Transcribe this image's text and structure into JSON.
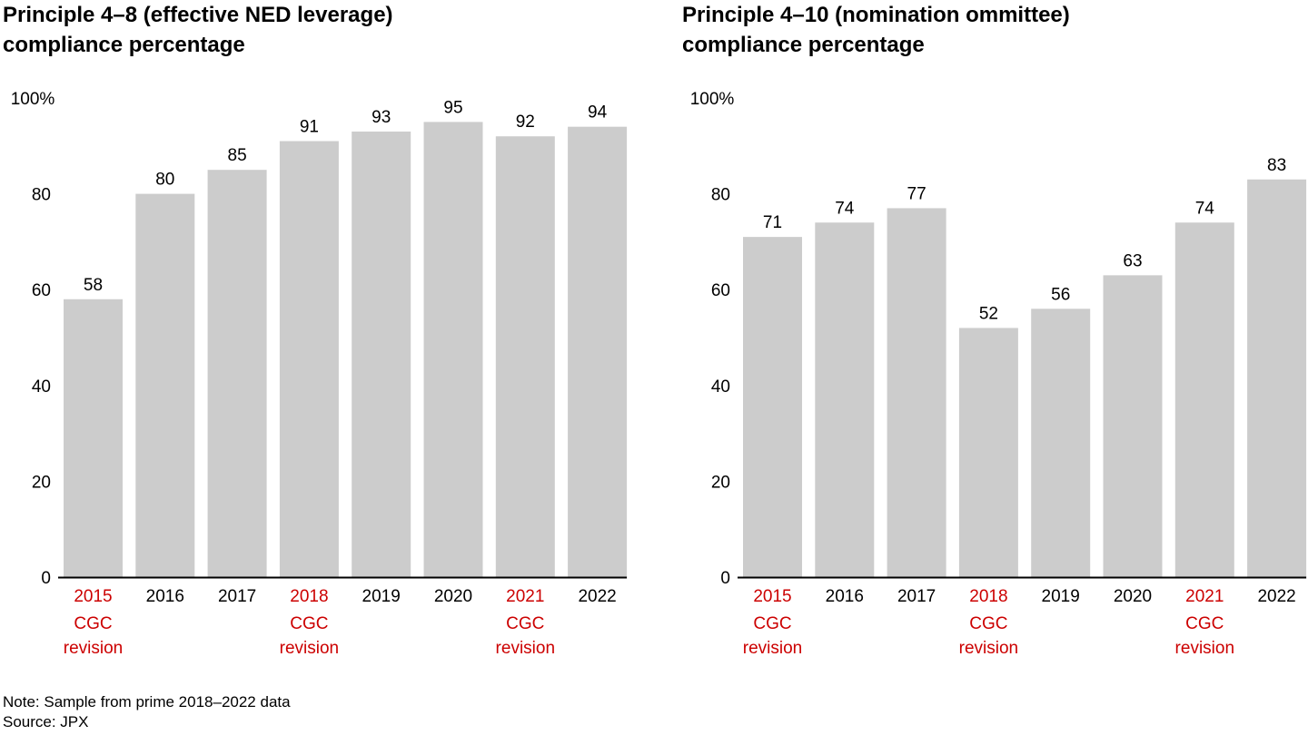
{
  "colors": {
    "bar": "#cccccc",
    "axis": "#000000",
    "highlight": "#cc0000",
    "text": "#000000"
  },
  "chart_data": [
    {
      "type": "bar",
      "title_line1": "Principle 4–8 (effective NED leverage)",
      "title_line2": "compliance percentage",
      "categories": [
        "2015",
        "2016",
        "2017",
        "2018",
        "2019",
        "2020",
        "2021",
        "2022"
      ],
      "values": [
        58,
        80,
        85,
        91,
        93,
        95,
        92,
        94
      ],
      "highlighted": [
        "2015",
        "2018",
        "2021"
      ],
      "highlight_label_line1": "CGC",
      "highlight_label_line2": "revision",
      "yticks": [
        "0",
        "20",
        "40",
        "60",
        "80",
        "100%"
      ],
      "ylim": [
        0,
        100
      ],
      "xlabel": "",
      "ylabel": "",
      "grid": false,
      "legend": "none"
    },
    {
      "type": "bar",
      "title_line1": "Principle 4–10 (nomination ommittee)",
      "title_line2": "compliance percentage",
      "categories": [
        "2015",
        "2016",
        "2017",
        "2018",
        "2019",
        "2020",
        "2021",
        "2022"
      ],
      "values": [
        71,
        74,
        77,
        52,
        56,
        63,
        74,
        83
      ],
      "highlighted": [
        "2015",
        "2018",
        "2021"
      ],
      "highlight_label_line1": "CGC",
      "highlight_label_line2": "revision",
      "yticks": [
        "0",
        "20",
        "40",
        "60",
        "80",
        "100%"
      ],
      "ylim": [
        0,
        100
      ],
      "xlabel": "",
      "ylabel": "",
      "grid": false,
      "legend": "none"
    }
  ],
  "footer": {
    "note": "Note: Sample from prime 2018–2022 data",
    "source": "Source: JPX"
  }
}
